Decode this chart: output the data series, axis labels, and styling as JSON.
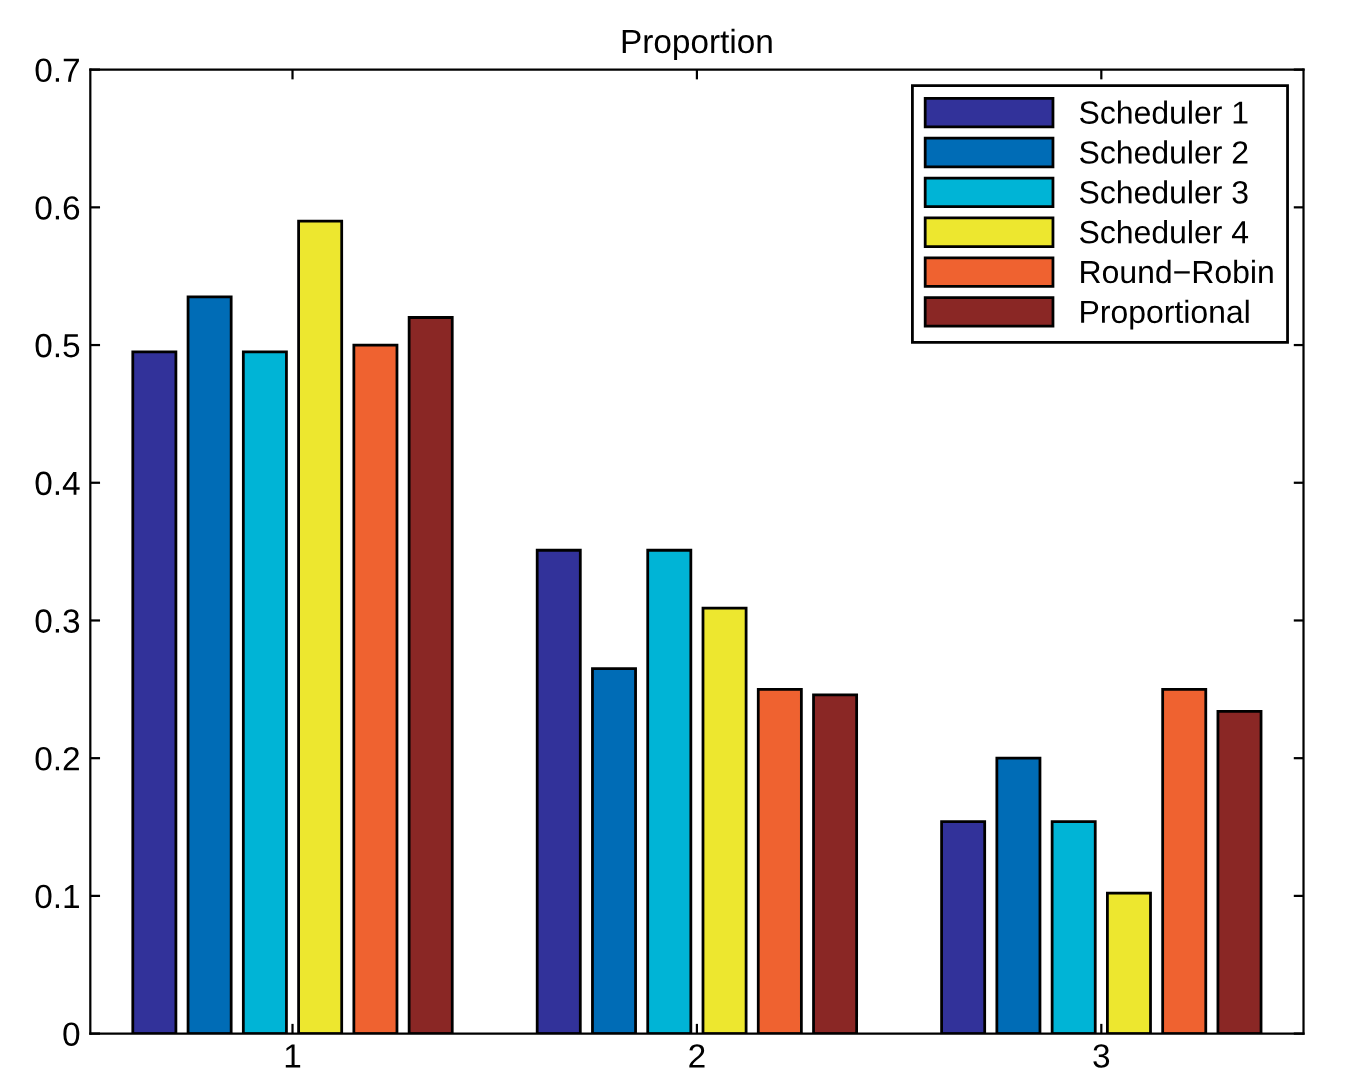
{
  "chart_data": {
    "type": "bar",
    "title": "Proportion",
    "categories": [
      "1",
      "2",
      "3"
    ],
    "series": [
      {
        "name": "Scheduler 1",
        "color": "#32329a",
        "values": [
          0.495,
          0.351,
          0.154
        ]
      },
      {
        "name": "Scheduler 2",
        "color": "#006cb6",
        "values": [
          0.535,
          0.265,
          0.2
        ]
      },
      {
        "name": "Scheduler 3",
        "color": "#00b4d6",
        "values": [
          0.495,
          0.351,
          0.154
        ]
      },
      {
        "name": "Scheduler 4",
        "color": "#ede72f",
        "values": [
          0.59,
          0.309,
          0.102
        ]
      },
      {
        "name": "Round−Robin",
        "color": "#ef6230",
        "values": [
          0.5,
          0.25,
          0.25
        ]
      },
      {
        "name": "Proportional",
        "color": "#8a2725",
        "values": [
          0.52,
          0.246,
          0.234
        ]
      }
    ],
    "ylim": [
      0,
      0.7
    ],
    "yticks": [
      0,
      0.1,
      0.2,
      0.3,
      0.4,
      0.5,
      0.6,
      0.7
    ],
    "grid": false,
    "legend": "top right"
  }
}
